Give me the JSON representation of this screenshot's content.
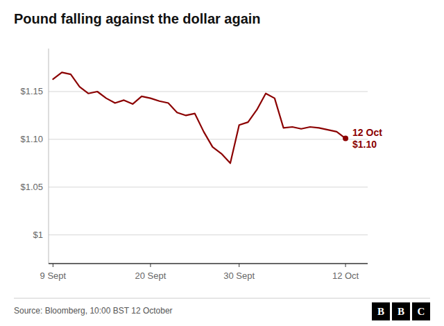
{
  "chart_data": {
    "type": "line",
    "title": "Pound falling against the dollar again",
    "source": "Source: Bloomberg, 10:00 BST 12 October",
    "logo": [
      "B",
      "B",
      "C"
    ],
    "color": "#8B0000",
    "grid": true,
    "xlim": [
      -0.5,
      35.5
    ],
    "xticks": [
      {
        "value": 0,
        "label": "9 Sept"
      },
      {
        "value": 11,
        "label": "20 Sept"
      },
      {
        "value": 21,
        "label": "30 Sept"
      },
      {
        "value": 33,
        "label": "12 Oct"
      }
    ],
    "ylim": [
      0.97,
      1.195
    ],
    "yticks": [
      {
        "value": 1.0,
        "label": "$1"
      },
      {
        "value": 1.05,
        "label": "$1.05"
      },
      {
        "value": 1.1,
        "label": "$1.10"
      },
      {
        "value": 1.15,
        "label": "$1.15"
      }
    ],
    "annotation": {
      "x": 33,
      "y": 1.101,
      "text": [
        "12 Oct",
        "$1.10"
      ]
    },
    "x": [
      0,
      1,
      2,
      3,
      4,
      5,
      6,
      7,
      8,
      9,
      10,
      11,
      12,
      13,
      14,
      15,
      16,
      17,
      18,
      19,
      20,
      21,
      22,
      23,
      24,
      25,
      26,
      27,
      28,
      29,
      30,
      31,
      32,
      33
    ],
    "values": [
      1.163,
      1.17,
      1.168,
      1.155,
      1.148,
      1.15,
      1.143,
      1.138,
      1.141,
      1.137,
      1.145,
      1.143,
      1.14,
      1.138,
      1.128,
      1.125,
      1.127,
      1.108,
      1.092,
      1.085,
      1.075,
      1.115,
      1.118,
      1.131,
      1.148,
      1.143,
      1.112,
      1.113,
      1.111,
      1.113,
      1.112,
      1.11,
      1.108,
      1.101
    ]
  }
}
